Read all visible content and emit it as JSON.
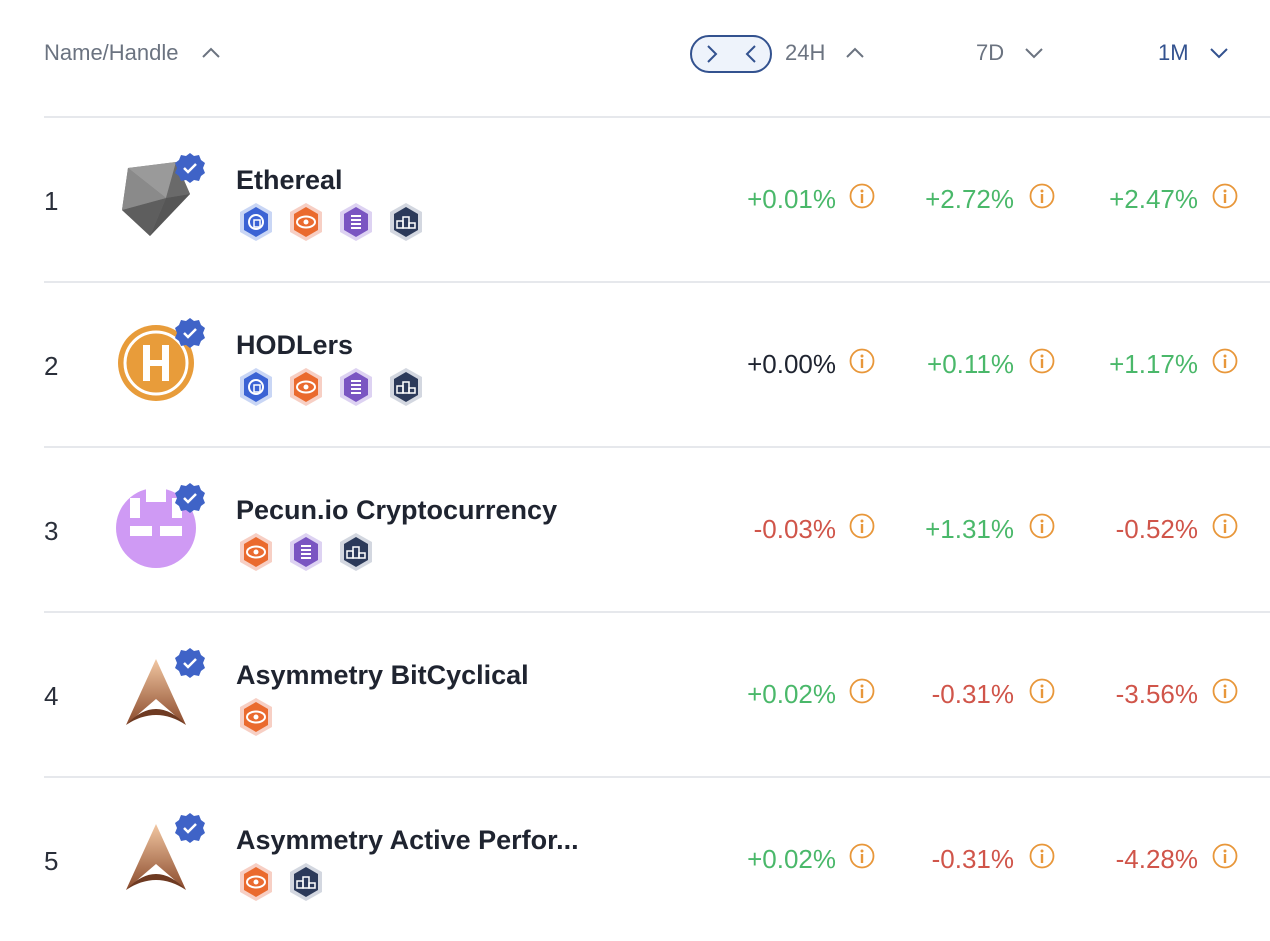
{
  "header": {
    "name_label": "Name/Handle",
    "col_24h": "24H",
    "col_7d": "7D",
    "col_1m": "1M"
  },
  "colors": {
    "accent": "#33528f",
    "positive": "#4ab86a",
    "negative": "#d0554a",
    "info": "#e8973a"
  },
  "rows": [
    {
      "rank": "1",
      "name": "Ethereal",
      "avatar": "gem-logo",
      "badges": [
        "shield-badge",
        "eye-badge",
        "list-badge",
        "podium-badge"
      ],
      "d24h": "+0.01%",
      "d24h_trend": "pos",
      "d7d": "+2.72%",
      "d7d_trend": "pos",
      "d1m": "+2.47%",
      "d1m_trend": "pos"
    },
    {
      "rank": "2",
      "name": "HODLers",
      "avatar": "h-coin-logo",
      "badges": [
        "shield-badge",
        "eye-badge",
        "list-badge",
        "podium-badge"
      ],
      "d24h": "+0.00%",
      "d24h_trend": "zero",
      "d7d": "+0.11%",
      "d7d_trend": "pos",
      "d1m": "+1.17%",
      "d1m_trend": "pos"
    },
    {
      "rank": "3",
      "name": "Pecun.io Cryptocurrency",
      "avatar": "pecun-logo",
      "badges": [
        "eye-badge",
        "list-badge",
        "podium-badge"
      ],
      "d24h": "-0.03%",
      "d24h_trend": "neg",
      "d7d": "+1.31%",
      "d7d_trend": "pos",
      "d1m": "-0.52%",
      "d1m_trend": "neg"
    },
    {
      "rank": "4",
      "name": "Asymmetry BitCyclical",
      "avatar": "asymmetry-logo",
      "badges": [
        "eye-badge"
      ],
      "d24h": "+0.02%",
      "d24h_trend": "pos",
      "d7d": "-0.31%",
      "d7d_trend": "neg",
      "d1m": "-3.56%",
      "d1m_trend": "neg"
    },
    {
      "rank": "5",
      "name": "Asymmetry Active Perfor...",
      "avatar": "asymmetry-logo",
      "badges": [
        "eye-badge",
        "podium-badge"
      ],
      "d24h": "+0.02%",
      "d24h_trend": "pos",
      "d7d": "-0.31%",
      "d7d_trend": "neg",
      "d1m": "-4.28%",
      "d1m_trend": "neg"
    }
  ]
}
